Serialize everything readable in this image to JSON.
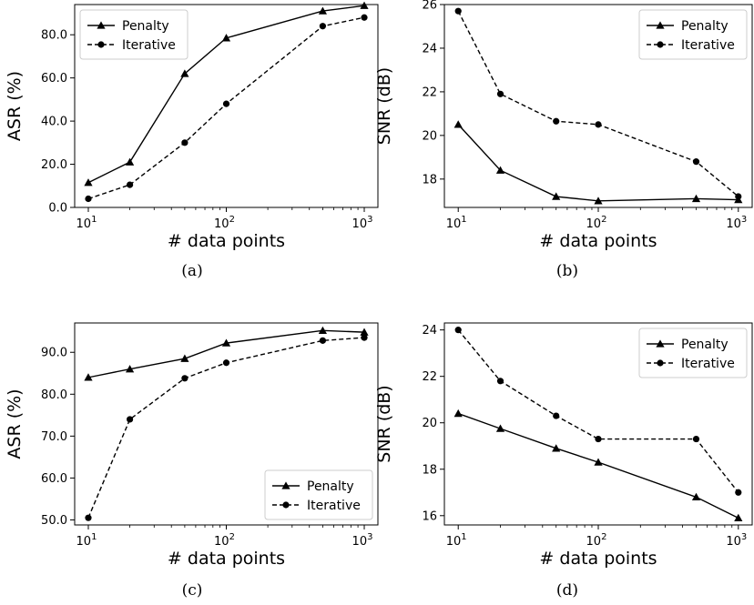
{
  "chart_data": [
    {
      "type": "line",
      "caption": "(a)",
      "xlabel": "# data points",
      "ylabel": "ASR (%)",
      "xscale": "log",
      "x": [
        10,
        20,
        50,
        100,
        500,
        1000
      ],
      "xticks": [
        10,
        100,
        1000
      ],
      "ylim": [
        0,
        94
      ],
      "yticks": [
        "0.0",
        "20.0",
        "40.0",
        "60.0",
        "80.0"
      ],
      "legend_position": "top-left",
      "series": [
        {
          "name": "Penalty",
          "style": "solid",
          "marker": "triangle",
          "values": [
            11.5,
            21,
            62,
            78.5,
            91,
            93.5
          ]
        },
        {
          "name": "Iterative",
          "style": "dashed",
          "marker": "circle",
          "values": [
            4,
            10.5,
            30,
            48,
            84,
            88
          ]
        }
      ]
    },
    {
      "type": "line",
      "caption": "(b)",
      "xlabel": "# data points",
      "ylabel": "SNR (dB)",
      "xscale": "log",
      "x": [
        10,
        20,
        50,
        100,
        500,
        1000
      ],
      "xticks": [
        10,
        100,
        1000
      ],
      "ylim": [
        16.7,
        26
      ],
      "yticks": [
        "18",
        "20",
        "22",
        "24",
        "26"
      ],
      "legend_position": "top-right",
      "series": [
        {
          "name": "Penalty",
          "style": "solid",
          "marker": "triangle",
          "values": [
            20.5,
            18.4,
            17.2,
            17.0,
            17.1,
            17.05
          ]
        },
        {
          "name": "Iterative",
          "style": "dashed",
          "marker": "circle",
          "values": [
            25.7,
            21.9,
            20.65,
            20.5,
            18.8,
            17.2
          ]
        }
      ]
    },
    {
      "type": "line",
      "caption": "(c)",
      "xlabel": "# data points",
      "ylabel": "ASR (%)",
      "xscale": "log",
      "x": [
        10,
        20,
        50,
        100,
        500,
        1000
      ],
      "xticks": [
        10,
        100,
        1000
      ],
      "ylim": [
        48.8,
        97
      ],
      "yticks": [
        "50.0",
        "60.0",
        "70.0",
        "80.0",
        "90.0"
      ],
      "legend_position": "bottom-right",
      "series": [
        {
          "name": "Penalty",
          "style": "solid",
          "marker": "triangle",
          "values": [
            84,
            86,
            88.5,
            92.2,
            95.2,
            94.8
          ]
        },
        {
          "name": "Iterative",
          "style": "dashed",
          "marker": "circle",
          "values": [
            50.5,
            74,
            83.8,
            87.5,
            92.8,
            93.5
          ]
        }
      ]
    },
    {
      "type": "line",
      "caption": "(d)",
      "xlabel": "# data points",
      "ylabel": "SNR (dB)",
      "xscale": "log",
      "x": [
        10,
        20,
        50,
        100,
        500,
        1000
      ],
      "xticks": [
        10,
        100,
        1000
      ],
      "ylim": [
        15.6,
        24.3
      ],
      "yticks": [
        "16",
        "18",
        "20",
        "22",
        "24"
      ],
      "legend_position": "top-right",
      "series": [
        {
          "name": "Penalty",
          "style": "solid",
          "marker": "triangle",
          "values": [
            20.4,
            19.75,
            18.9,
            18.3,
            16.8,
            15.9
          ]
        },
        {
          "name": "Iterative",
          "style": "dashed",
          "marker": "circle",
          "values": [
            24.0,
            21.8,
            20.3,
            19.3,
            19.3,
            17.0
          ]
        }
      ]
    }
  ]
}
